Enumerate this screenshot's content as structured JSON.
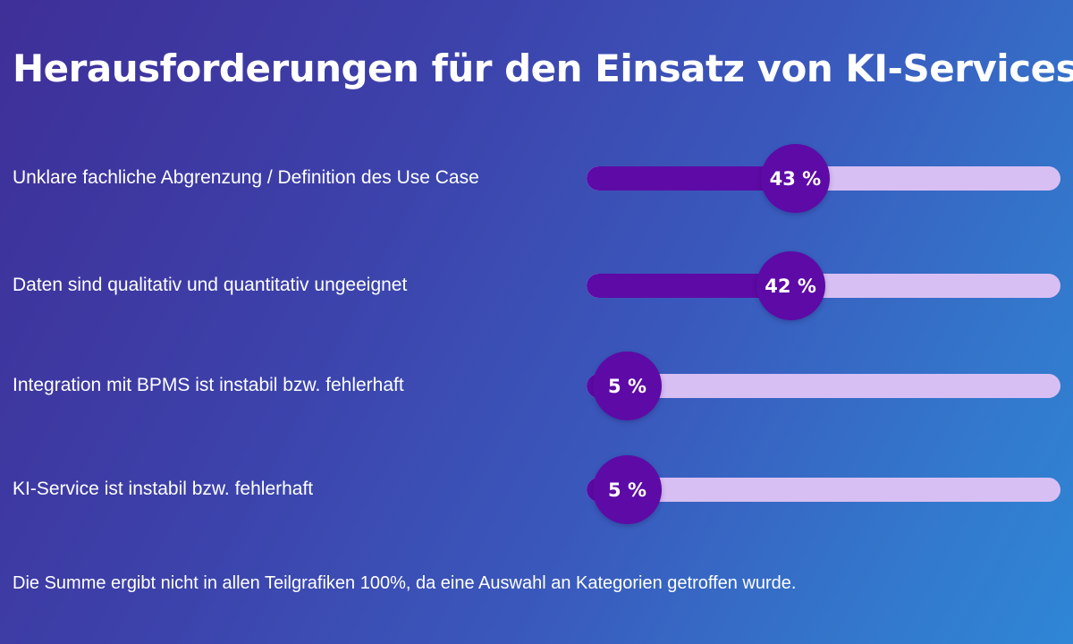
{
  "title": "Herausforderungen für den Einsatz von KI-Services",
  "footnote": "Die Summe ergibt nicht in allen Teilgrafiken 100%, da eine Auswahl an Kategorien getroffen wurde.",
  "colors": {
    "bar_fill": "#5e0aa6",
    "bar_track": "#d8bff3",
    "text": "#ffffff"
  },
  "chart_data": {
    "type": "bar",
    "orientation": "horizontal",
    "title": "Herausforderungen für den Einsatz von KI-Services",
    "xlim": [
      0,
      100
    ],
    "unit": "%",
    "categories": [
      "Unklare fachliche Abgrenzung / Definition des Use Case",
      "Daten sind qualitativ und quantitativ ungeeignet",
      "Integration mit BPMS ist instabil bzw. fehlerhaft",
      "KI-Service ist instabil bzw. fehlerhaft"
    ],
    "values": [
      43,
      42,
      5,
      5
    ],
    "value_labels": [
      "43 %",
      "42 %",
      "5 %",
      "5 %"
    ]
  }
}
